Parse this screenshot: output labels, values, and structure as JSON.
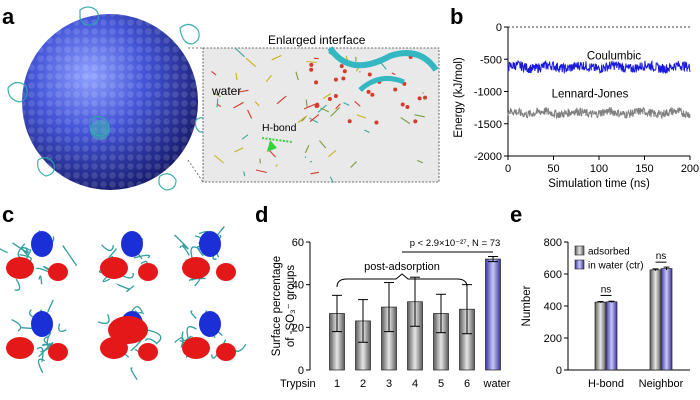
{
  "panel_labels": {
    "a": "a",
    "b": "b",
    "c": "c",
    "d": "d",
    "e": "e"
  },
  "panel_a": {
    "inset_title": "Enlarged interface",
    "water_label": "water",
    "hbond_label": "H-bond"
  },
  "chart_data": [
    {
      "id": "b",
      "type": "line",
      "xlabel": "Simulation time (ns)",
      "ylabel": "Energy (kJ/mol)",
      "xlim": [
        0,
        200
      ],
      "ylim": [
        -2000,
        0
      ],
      "xticks": [
        0,
        50,
        100,
        150,
        200
      ],
      "yticks": [
        0,
        -500,
        -1000,
        -1500,
        -2000
      ],
      "reference_line": 0,
      "series": [
        {
          "name": "Coulumbic",
          "color": "#1a1adc",
          "mean": -620,
          "noise": 75,
          "x": [
            0,
            200
          ]
        },
        {
          "name": "Lennard-Jones",
          "color": "#808080",
          "mean": -1330,
          "noise": 65,
          "x": [
            0,
            200
          ]
        }
      ]
    },
    {
      "id": "d",
      "type": "bar",
      "ylabel_lines": [
        "Surface percentage",
        "of -SO₃⁻ groups"
      ],
      "ylim": [
        0,
        60
      ],
      "yticks": [
        0,
        20,
        40,
        60
      ],
      "x_prefix": "Trypsin",
      "categories": [
        "1",
        "2",
        "3",
        "4",
        "5",
        "6",
        "water"
      ],
      "values": [
        26.5,
        23,
        29.5,
        32,
        26.5,
        28.5,
        52
      ],
      "errors": [
        8.5,
        10,
        11.5,
        11.5,
        9,
        11.5,
        1.2
      ],
      "bracket_label": "post-adsorption",
      "stat_text": "p < 2.9×10⁻²⁷, N = 73"
    },
    {
      "id": "e",
      "type": "bar",
      "ylabel": "Number",
      "ylim": [
        0,
        800
      ],
      "yticks": [
        0,
        200,
        400,
        600,
        800
      ],
      "categories": [
        "H-bond",
        "Neighbor"
      ],
      "series": [
        {
          "name": "adsorbed",
          "values": [
            424,
            626
          ],
          "errors": [
            4,
            6
          ]
        },
        {
          "name": "in water (ctr)",
          "values": [
            426,
            634
          ],
          "errors": [
            4,
            9
          ]
        }
      ],
      "significance": [
        "ns",
        "ns"
      ]
    }
  ]
}
